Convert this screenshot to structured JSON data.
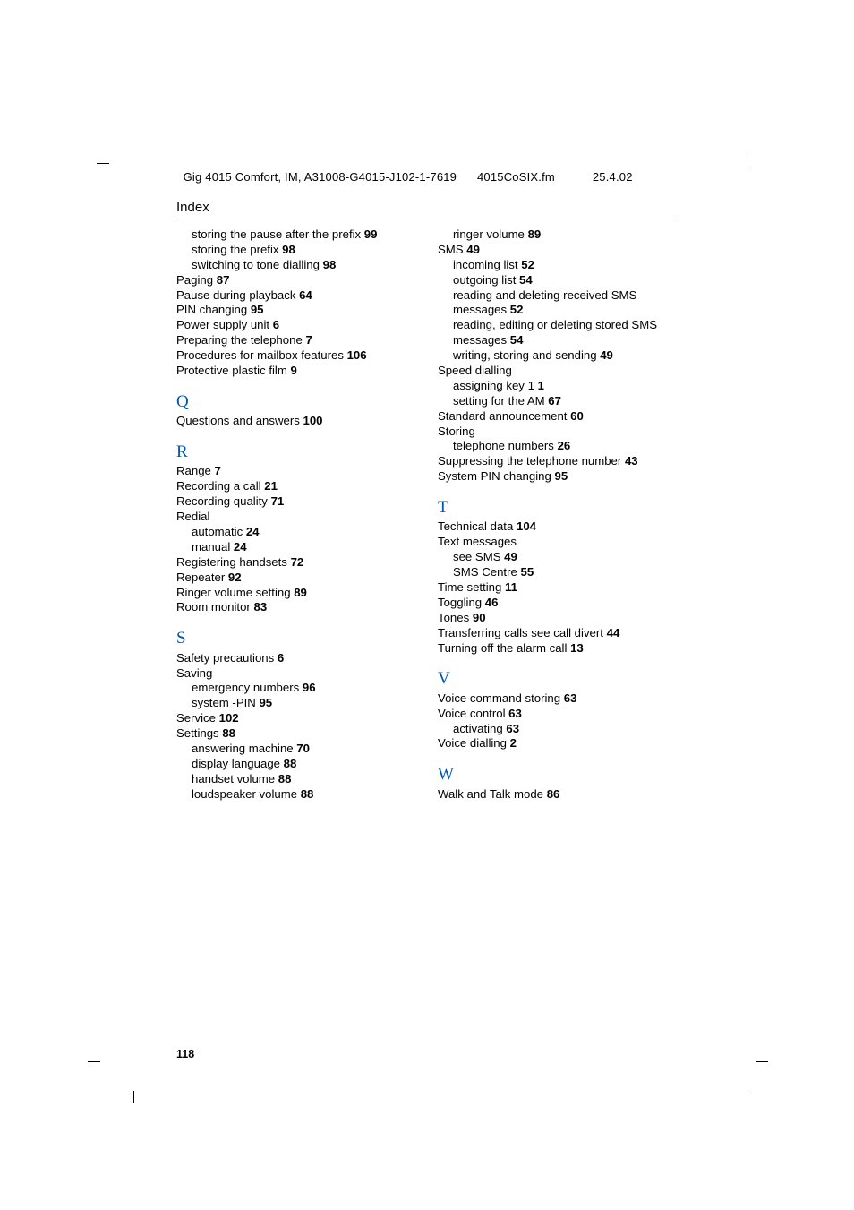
{
  "crop_color": "#000000",
  "header": {
    "title_model": "Gig 4015 Comfort, IM, A31008-G4015-J102-1-7619",
    "filename": "4015CoSIX.fm",
    "date": "25.4.02"
  },
  "section_title": "Index",
  "page_number": "118",
  "columns": {
    "left": [
      {
        "type": "entry",
        "indent": true,
        "text": "storing the pause after the prefix ",
        "page": "99"
      },
      {
        "type": "entry",
        "indent": true,
        "text": "storing the prefix ",
        "page": "98"
      },
      {
        "type": "entry",
        "indent": true,
        "text": "switching to tone dialling ",
        "page": "98"
      },
      {
        "type": "entry",
        "indent": false,
        "text": "Paging ",
        "page": "87"
      },
      {
        "type": "entry",
        "indent": false,
        "text": "Pause during playback ",
        "page": "64"
      },
      {
        "type": "entry",
        "indent": false,
        "text": "PIN changing ",
        "page": "95"
      },
      {
        "type": "entry",
        "indent": false,
        "text": "Power supply unit ",
        "page": "6"
      },
      {
        "type": "entry",
        "indent": false,
        "text": "Preparing the telephone ",
        "page": "7"
      },
      {
        "type": "entry",
        "indent": false,
        "text": "Procedures for mailbox features ",
        "page": "106"
      },
      {
        "type": "entry",
        "indent": false,
        "text": "Protective plastic film ",
        "page": "9"
      },
      {
        "type": "letter",
        "text": "Q"
      },
      {
        "type": "entry",
        "indent": false,
        "text": "Questions and answers ",
        "page": "100"
      },
      {
        "type": "letter",
        "text": "R"
      },
      {
        "type": "entry",
        "indent": false,
        "text": "Range ",
        "page": "7"
      },
      {
        "type": "entry",
        "indent": false,
        "text": "Recording a call ",
        "page": "21"
      },
      {
        "type": "entry",
        "indent": false,
        "text": "Recording quality ",
        "page": "71"
      },
      {
        "type": "entry",
        "indent": false,
        "text": "Redial",
        "page": ""
      },
      {
        "type": "entry",
        "indent": true,
        "text": "automatic ",
        "page": "24"
      },
      {
        "type": "entry",
        "indent": true,
        "text": "manual ",
        "page": "24"
      },
      {
        "type": "entry",
        "indent": false,
        "text": "Registering handsets ",
        "page": "72"
      },
      {
        "type": "entry",
        "indent": false,
        "text": "Repeater ",
        "page": "92"
      },
      {
        "type": "entry",
        "indent": false,
        "text": "Ringer volume setting ",
        "page": "89"
      },
      {
        "type": "entry",
        "indent": false,
        "text": "Room monitor ",
        "page": "83"
      },
      {
        "type": "letter",
        "text": "S"
      },
      {
        "type": "entry",
        "indent": false,
        "text": "Safety precautions ",
        "page": "6"
      },
      {
        "type": "entry",
        "indent": false,
        "text": "Saving",
        "page": ""
      },
      {
        "type": "entry",
        "indent": true,
        "text": "emergency numbers ",
        "page": "96"
      },
      {
        "type": "entry",
        "indent": true,
        "text": "system -PIN ",
        "page": "95"
      },
      {
        "type": "entry",
        "indent": false,
        "text": "Service ",
        "page": "102"
      },
      {
        "type": "entry",
        "indent": false,
        "text": "Settings ",
        "page": "88"
      },
      {
        "type": "entry",
        "indent": true,
        "text": "answering machine ",
        "page": "70"
      },
      {
        "type": "entry",
        "indent": true,
        "text": "display language ",
        "page": "88"
      },
      {
        "type": "entry",
        "indent": true,
        "text": "handset volume ",
        "page": "88"
      },
      {
        "type": "entry",
        "indent": true,
        "text": "loudspeaker volume ",
        "page": "88"
      }
    ],
    "right": [
      {
        "type": "entry",
        "indent": true,
        "text": "ringer volume ",
        "page": "89"
      },
      {
        "type": "entry",
        "indent": false,
        "text": "SMS ",
        "page": "49"
      },
      {
        "type": "entry",
        "indent": true,
        "text": "incoming list ",
        "page": "52"
      },
      {
        "type": "entry",
        "indent": true,
        "text": "outgoing list ",
        "page": "54"
      },
      {
        "type": "entry",
        "indent": true,
        "text": "reading and deleting received SMS messages ",
        "page": "52"
      },
      {
        "type": "entry",
        "indent": true,
        "text": "reading, editing or deleting stored SMS messages ",
        "page": "54"
      },
      {
        "type": "entry",
        "indent": true,
        "text": "writing, storing and sending ",
        "page": "49"
      },
      {
        "type": "entry",
        "indent": false,
        "text": "Speed dialling",
        "page": ""
      },
      {
        "type": "entry",
        "indent": true,
        "text": "assigning key 1 ",
        "page": "1"
      },
      {
        "type": "entry",
        "indent": true,
        "text": "setting for the AM ",
        "page": "67"
      },
      {
        "type": "entry",
        "indent": false,
        "text": "Standard announcement ",
        "page": "60"
      },
      {
        "type": "entry",
        "indent": false,
        "text": "Storing",
        "page": ""
      },
      {
        "type": "entry",
        "indent": true,
        "text": "telephone numbers ",
        "page": "26"
      },
      {
        "type": "entry",
        "indent": false,
        "text": "Suppressing the telephone number ",
        "page": "43"
      },
      {
        "type": "entry",
        "indent": false,
        "text": "System PIN changing ",
        "page": "95"
      },
      {
        "type": "letter",
        "text": "T"
      },
      {
        "type": "entry",
        "indent": false,
        "text": "Technical data ",
        "page": "104"
      },
      {
        "type": "entry",
        "indent": false,
        "text": "Text messages",
        "page": ""
      },
      {
        "type": "entry",
        "indent": true,
        "text": "see SMS ",
        "page": "49"
      },
      {
        "type": "entry",
        "indent": true,
        "text": "SMS Centre ",
        "page": "55"
      },
      {
        "type": "entry",
        "indent": false,
        "text": "Time setting ",
        "page": "11"
      },
      {
        "type": "entry",
        "indent": false,
        "text": "Toggling ",
        "page": "46"
      },
      {
        "type": "entry",
        "indent": false,
        "text": "Tones ",
        "page": "90"
      },
      {
        "type": "entry",
        "indent": false,
        "text": "Transferring calls see call divert ",
        "page": "44"
      },
      {
        "type": "entry",
        "indent": false,
        "text": "Turning off the alarm call ",
        "page": "13"
      },
      {
        "type": "letter",
        "text": "V"
      },
      {
        "type": "entry",
        "indent": false,
        "text": "Voice command storing ",
        "page": "63"
      },
      {
        "type": "entry",
        "indent": false,
        "text": "Voice control ",
        "page": "63"
      },
      {
        "type": "entry",
        "indent": true,
        "text": "activating ",
        "page": "63"
      },
      {
        "type": "entry",
        "indent": false,
        "text": "Voice dialling ",
        "page": "2"
      },
      {
        "type": "letter",
        "text": "W"
      },
      {
        "type": "entry",
        "indent": false,
        "text": "Walk and Talk mode ",
        "page": "86"
      }
    ]
  }
}
